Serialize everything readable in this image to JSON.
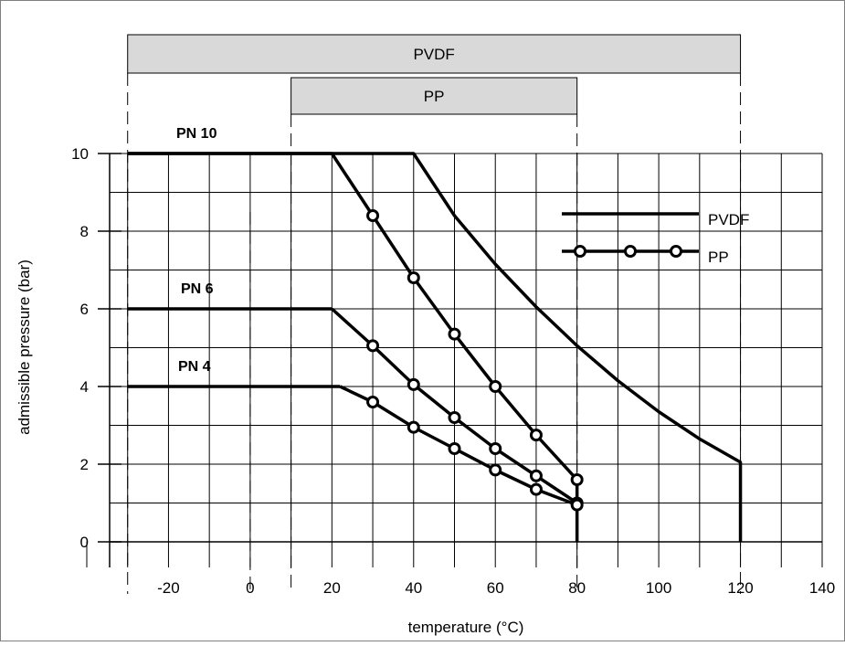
{
  "chart_data": {
    "type": "line",
    "xlabel": "temperature (°C)",
    "ylabel": "admissible pressure (bar)",
    "xlim": [
      -40,
      140
    ],
    "ylim": [
      0,
      10
    ],
    "x_ticks": [
      -20,
      0,
      20,
      40,
      60,
      80,
      100,
      120,
      140
    ],
    "y_ticks": [
      0,
      2,
      4,
      6,
      8,
      10
    ],
    "grid": true,
    "legend_position": "top-right",
    "legend": [
      {
        "name": "PVDF",
        "marker": "none"
      },
      {
        "name": "PP",
        "marker": "circle"
      }
    ],
    "ranges": [
      {
        "name": "PVDF",
        "from": -30,
        "to": 120
      },
      {
        "name": "PP",
        "from": 10,
        "to": 80
      }
    ],
    "pn_labels": [
      {
        "text": "PN 10",
        "x": -30,
        "y": 10
      },
      {
        "text": "PN 6",
        "x": -30,
        "y": 6
      },
      {
        "text": "PN 4",
        "x": -30,
        "y": 4
      }
    ],
    "series": [
      {
        "name": "PVDF",
        "material": "PVDF",
        "rating": "PN 10",
        "marker": "none",
        "x": [
          -30,
          40,
          50,
          60,
          70,
          80,
          90,
          100,
          110,
          120,
          120
        ],
        "y": [
          10,
          10,
          8.4,
          7.15,
          6.05,
          5.05,
          4.15,
          3.35,
          2.65,
          2.05,
          0
        ]
      },
      {
        "name": "PP PN 10",
        "material": "PP",
        "rating": "PN 10",
        "marker": "none",
        "x": [
          -30,
          20
        ],
        "y": [
          10,
          10
        ]
      },
      {
        "name": "PP PN 10",
        "material": "PP",
        "rating": "PN 10",
        "marker": "circle",
        "x": [
          20,
          30,
          40,
          50,
          60,
          70,
          80,
          80
        ],
        "y": [
          10,
          8.4,
          6.8,
          5.35,
          4.0,
          2.75,
          1.6,
          0
        ]
      },
      {
        "name": "PP PN 6",
        "material": "PP",
        "rating": "PN 6",
        "marker": "none",
        "x": [
          -30,
          20
        ],
        "y": [
          6,
          6
        ]
      },
      {
        "name": "PP PN 6",
        "material": "PP",
        "rating": "PN 6",
        "marker": "circle",
        "x": [
          20,
          30,
          40,
          50,
          60,
          70,
          80
        ],
        "y": [
          6,
          5.05,
          4.05,
          3.2,
          2.4,
          1.7,
          1.0
        ]
      },
      {
        "name": "PP PN 4",
        "material": "PP",
        "rating": "PN 4",
        "marker": "none",
        "x": [
          -30,
          22
        ],
        "y": [
          4,
          4
        ]
      },
      {
        "name": "PP PN 4",
        "material": "PP",
        "rating": "PN 4",
        "marker": "circle",
        "x": [
          22,
          30,
          40,
          50,
          60,
          70,
          80
        ],
        "y": [
          4,
          3.6,
          2.95,
          2.4,
          1.85,
          1.35,
          0.95
        ]
      }
    ]
  },
  "colors": {
    "line": "#000000",
    "grid": "#000000",
    "band_fill": "#d9d9d9",
    "frame": "#7f7f7f"
  }
}
